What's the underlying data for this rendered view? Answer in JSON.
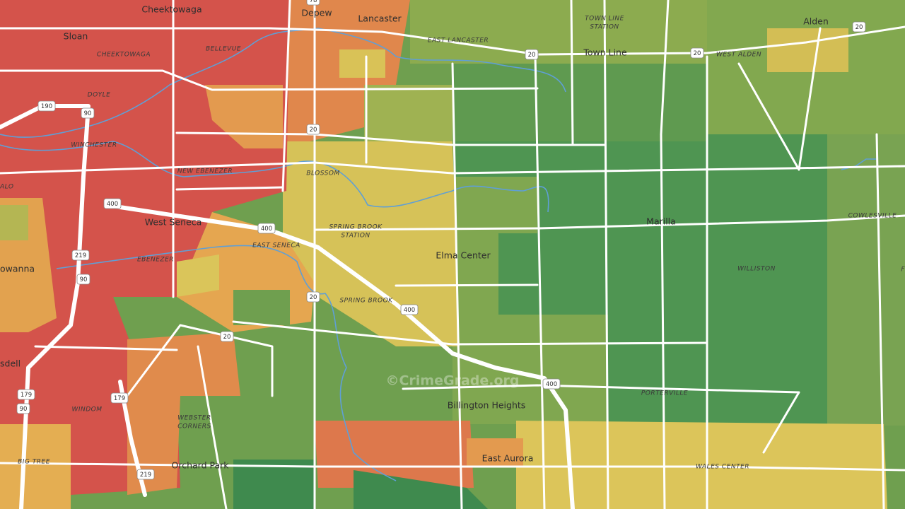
{
  "labels": [
    "Cheektowaga",
    "Depew",
    "Lancaster",
    "Sloan",
    "CHEEKTOWAGA",
    "BELLEVUE",
    "EAST LANCASTER",
    "TOWN LINE",
    "STATION",
    "Town Line",
    "WEST ALDEN",
    "Alden",
    "DOYLE",
    "WINCHESTER",
    "NEW EBENEZER",
    "BLOSSOM",
    "ALO",
    "West Seneca",
    "SPRING BROOK",
    "STATION",
    "EAST SENECA",
    "EBENEZER",
    "Elma Center",
    "Marilla",
    "COWLESVILLE",
    "WILLISTON",
    "owanna",
    "SPRING BROOK",
    "Billington Heights",
    "PORTERVILLE",
    "East Aurora",
    "WALES CENTER",
    "sdell",
    "WINDOM",
    "WEBSTER",
    "CORNERS",
    "Orchard Park",
    "BIG TREE",
    "F"
  ],
  "shields": [
    "78",
    "20",
    "20",
    "20",
    "190",
    "90",
    "20",
    "400",
    "400",
    "219",
    "90",
    "20",
    "400",
    "20",
    "400",
    "179",
    "179",
    "90",
    "219"
  ],
  "watermark": "©CrimeGrade.org"
}
